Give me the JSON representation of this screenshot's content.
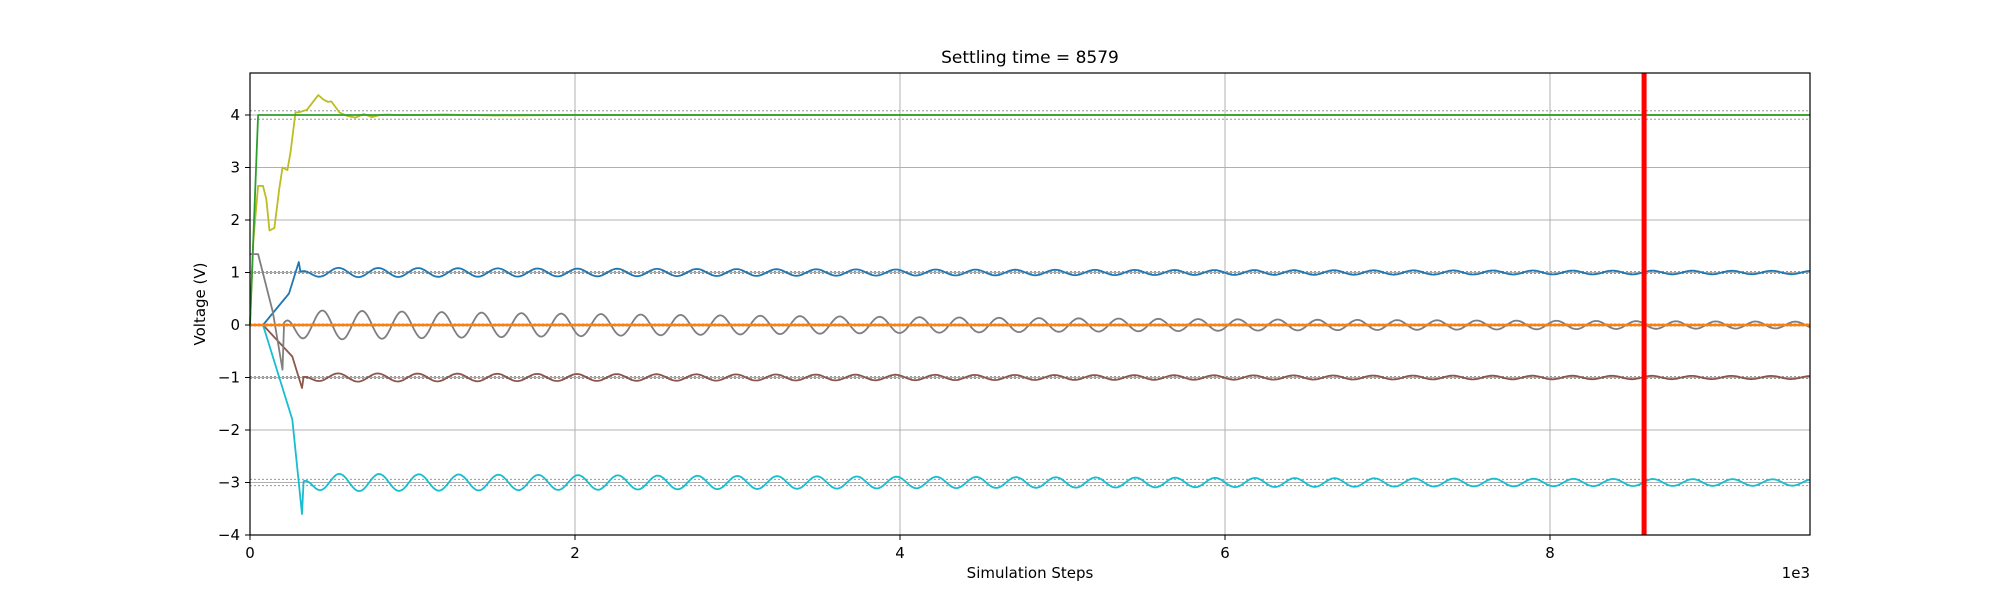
{
  "chart_data": {
    "type": "line",
    "title": "Settling time = 8579",
    "xlabel": "Simulation Steps",
    "ylabel": "Voltage (V)",
    "x_offset_label": "1e3",
    "xlim": [
      0,
      9.6
    ],
    "ylim": [
      -4,
      4.8
    ],
    "x_ticks": [
      0,
      2,
      4,
      6,
      8
    ],
    "x_tick_labels": [
      "0",
      "2",
      "4",
      "6",
      "8"
    ],
    "y_ticks": [
      -4,
      -3,
      -2,
      -1,
      0,
      1,
      2,
      3,
      4
    ],
    "y_tick_labels": [
      "−4",
      "−3",
      "−2",
      "−1",
      "0",
      "1",
      "2",
      "3",
      "4"
    ],
    "grid": true,
    "settling_time": 8.579,
    "settling_line_color": "#ff0000",
    "tolerance_bands": [
      {
        "center": 4,
        "half_width": 0.08
      },
      {
        "center": 1,
        "half_width": 0.02
      },
      {
        "center": 0,
        "half_width": 0.02
      },
      {
        "center": -1,
        "half_width": 0.02
      },
      {
        "center": -3,
        "half_width": 0.06
      }
    ],
    "series": [
      {
        "color": "#bcbd22",
        "type": "trace",
        "x": [
          0,
          0.02,
          0.05,
          0.08,
          0.1,
          0.12,
          0.15,
          0.18,
          0.2,
          0.23,
          0.25,
          0.28,
          0.3,
          0.35,
          0.4,
          0.42,
          0.45,
          0.48,
          0.5,
          0.55,
          0.6,
          0.65,
          0.7,
          0.75,
          0.8,
          0.85,
          0.9,
          1.0,
          1.2,
          1.5,
          2.0,
          3.0,
          9.6
        ],
        "y": [
          0,
          1.6,
          2.65,
          2.65,
          2.4,
          1.8,
          1.85,
          2.6,
          3.0,
          2.95,
          3.3,
          4.05,
          4.05,
          4.1,
          4.3,
          4.38,
          4.3,
          4.25,
          4.26,
          4.05,
          3.98,
          3.95,
          4.02,
          3.96,
          4.0,
          4.01,
          4.0,
          4.0,
          4.01,
          3.99,
          4.0,
          4.0,
          4.0
        ]
      },
      {
        "color": "#2ca02c",
        "type": "trace",
        "x": [
          0,
          0.05,
          9.6
        ],
        "y": [
          0,
          4,
          4
        ]
      },
      {
        "color": "#1f77b4",
        "type": "oscillation",
        "x_start": 0.08,
        "target": 1.0,
        "initial": 0.0,
        "rise_end": 0.22,
        "amp0": 0.08,
        "decay": 0.15,
        "period": 0.245,
        "phase": 0.0,
        "overshoot": {
          "x": 0.3,
          "y": 1.2
        }
      },
      {
        "color": "#8c564b",
        "type": "oscillation",
        "x_start": 0.08,
        "target": -1.0,
        "initial": 0.0,
        "rise_end": 0.22,
        "amp0": 0.07,
        "decay": 0.15,
        "period": 0.245,
        "phase": 0.6,
        "overshoot": {
          "x": 0.32,
          "y": -1.2
        }
      },
      {
        "color": "#7f7f7f",
        "type": "oscillation",
        "x_start": 0.05,
        "target": 0.0,
        "initial": 1.35,
        "rise_end": 0.22,
        "amp0": 0.28,
        "decay": 0.18,
        "period": 0.245,
        "phase": 0.0,
        "overshoot": {
          "x": 0.2,
          "y": -0.85
        }
      },
      {
        "color": "#17becf",
        "type": "oscillation",
        "x_start": 0.08,
        "target": -3.0,
        "initial": 0.0,
        "rise_end": 0.22,
        "amp0": 0.16,
        "decay": 0.13,
        "period": 0.245,
        "phase": 0.4,
        "overshoot": {
          "x": 0.32,
          "y": -3.6
        }
      },
      {
        "color": "#ff7f0e",
        "type": "trace",
        "x": [
          0,
          9.6
        ],
        "y": [
          0,
          0
        ]
      }
    ]
  }
}
